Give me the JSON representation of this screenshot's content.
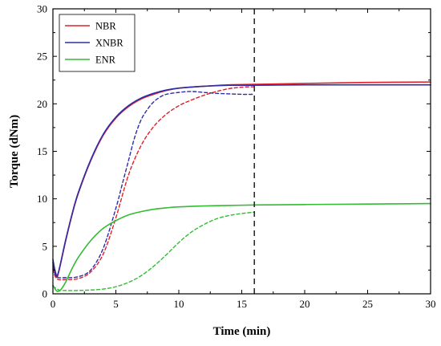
{
  "chart_data": {
    "type": "line",
    "xlabel": "Time (min)",
    "ylabel": "Torque (dNm)",
    "xlim": [
      0,
      30
    ],
    "ylim": [
      0,
      30
    ],
    "xticks": [
      0,
      5,
      10,
      15,
      20,
      25,
      30
    ],
    "yticks": [
      0,
      5,
      10,
      15,
      20,
      25,
      30
    ],
    "grid": false,
    "legend_position": "top-left",
    "reference_line": {
      "x": 16,
      "style": "dashed",
      "color": "#222222"
    },
    "series": [
      {
        "name": "NBR",
        "color": "#e0202a",
        "style": "solid",
        "points": [
          [
            0,
            3.3
          ],
          [
            0.2,
            2.1
          ],
          [
            0.4,
            2.0
          ],
          [
            1,
            5.5
          ],
          [
            1.5,
            8.2
          ],
          [
            2,
            10.5
          ],
          [
            3,
            14.0
          ],
          [
            4,
            16.7
          ],
          [
            5,
            18.5
          ],
          [
            6,
            19.7
          ],
          [
            7,
            20.5
          ],
          [
            8,
            21.0
          ],
          [
            9,
            21.4
          ],
          [
            10,
            21.65
          ],
          [
            12,
            21.85
          ],
          [
            14,
            22.0
          ],
          [
            16,
            22.05
          ],
          [
            20,
            22.15
          ],
          [
            25,
            22.25
          ],
          [
            30,
            22.3
          ]
        ]
      },
      {
        "name": "NBR",
        "color": "#e0202a",
        "style": "dashed",
        "points": [
          [
            0,
            2.6
          ],
          [
            0.3,
            1.6
          ],
          [
            1,
            1.5
          ],
          [
            2,
            1.6
          ],
          [
            3,
            2.3
          ],
          [
            4,
            4.2
          ],
          [
            5,
            8.0
          ],
          [
            6,
            12.5
          ],
          [
            7,
            15.6
          ],
          [
            8,
            17.6
          ],
          [
            9,
            18.9
          ],
          [
            10,
            19.8
          ],
          [
            11,
            20.4
          ],
          [
            12,
            20.9
          ],
          [
            13,
            21.3
          ],
          [
            14,
            21.6
          ],
          [
            15,
            21.75
          ],
          [
            16,
            21.8
          ]
        ]
      },
      {
        "name": "XNBR",
        "color": "#2d2da8",
        "style": "solid",
        "points": [
          [
            0,
            3.6
          ],
          [
            0.2,
            2.3
          ],
          [
            0.4,
            2.1
          ],
          [
            1,
            5.6
          ],
          [
            1.5,
            8.3
          ],
          [
            2,
            10.6
          ],
          [
            3,
            14.1
          ],
          [
            4,
            16.8
          ],
          [
            5,
            18.6
          ],
          [
            6,
            19.8
          ],
          [
            7,
            20.6
          ],
          [
            8,
            21.1
          ],
          [
            9,
            21.45
          ],
          [
            10,
            21.65
          ],
          [
            12,
            21.85
          ],
          [
            14,
            21.95
          ],
          [
            16,
            21.95
          ],
          [
            20,
            22.0
          ],
          [
            25,
            22.0
          ],
          [
            30,
            22.0
          ]
        ]
      },
      {
        "name": "XNBR",
        "color": "#2d2da8",
        "style": "dashed",
        "points": [
          [
            0,
            2.8
          ],
          [
            0.3,
            1.8
          ],
          [
            1,
            1.7
          ],
          [
            2,
            1.8
          ],
          [
            3,
            2.5
          ],
          [
            4,
            4.8
          ],
          [
            5,
            9.0
          ],
          [
            5.5,
            11.5
          ],
          [
            6,
            14.0
          ],
          [
            6.5,
            16.5
          ],
          [
            7,
            18.3
          ],
          [
            7.5,
            19.4
          ],
          [
            8,
            20.2
          ],
          [
            8.5,
            20.7
          ],
          [
            9,
            21.0
          ],
          [
            10,
            21.2
          ],
          [
            11,
            21.3
          ],
          [
            12,
            21.2
          ],
          [
            13,
            21.1
          ],
          [
            14,
            21.05
          ],
          [
            15,
            21.0
          ],
          [
            16,
            21.0
          ]
        ]
      },
      {
        "name": "ENR",
        "color": "#33bb33",
        "style": "solid",
        "points": [
          [
            0,
            0.9
          ],
          [
            0.3,
            0.3
          ],
          [
            0.6,
            0.4
          ],
          [
            1,
            1.2
          ],
          [
            1.5,
            2.6
          ],
          [
            2,
            3.8
          ],
          [
            3,
            5.6
          ],
          [
            4,
            6.9
          ],
          [
            5,
            7.7
          ],
          [
            6,
            8.3
          ],
          [
            7,
            8.65
          ],
          [
            8,
            8.9
          ],
          [
            9,
            9.05
          ],
          [
            10,
            9.15
          ],
          [
            12,
            9.25
          ],
          [
            14,
            9.3
          ],
          [
            16,
            9.35
          ],
          [
            20,
            9.4
          ],
          [
            25,
            9.45
          ],
          [
            30,
            9.5
          ]
        ]
      },
      {
        "name": "ENR",
        "color": "#33bb33",
        "style": "dashed",
        "points": [
          [
            0,
            0.8
          ],
          [
            0.5,
            0.4
          ],
          [
            1,
            0.35
          ],
          [
            2,
            0.35
          ],
          [
            3,
            0.4
          ],
          [
            4,
            0.5
          ],
          [
            5,
            0.75
          ],
          [
            6,
            1.2
          ],
          [
            7,
            1.9
          ],
          [
            8,
            2.9
          ],
          [
            9,
            4.1
          ],
          [
            10,
            5.4
          ],
          [
            11,
            6.5
          ],
          [
            12,
            7.3
          ],
          [
            13,
            7.9
          ],
          [
            14,
            8.25
          ],
          [
            15,
            8.45
          ],
          [
            16,
            8.6
          ]
        ]
      }
    ]
  },
  "legend": {
    "items": [
      {
        "label": "NBR",
        "color": "#e0202a"
      },
      {
        "label": "XNBR",
        "color": "#2d2da8"
      },
      {
        "label": "ENR",
        "color": "#33bb33"
      }
    ]
  }
}
